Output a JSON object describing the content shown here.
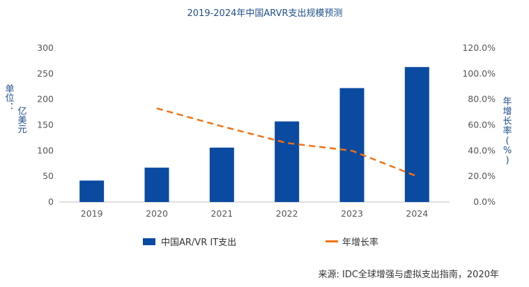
{
  "chart_data": {
    "type": "bar",
    "title": "2019-2024年中国ARVR支出规模预测",
    "categories": [
      "2019",
      "2020",
      "2021",
      "2022",
      "2023",
      "2024"
    ],
    "series": [
      {
        "name": "中国AR/VR IT支出",
        "type": "bar",
        "axis": "left",
        "values": [
          41.8,
          67,
          106,
          157,
          222,
          263
        ]
      },
      {
        "name": "年增长率",
        "type": "line",
        "style": "dashed",
        "axis": "right",
        "x": [
          "2020",
          "2021",
          "2022",
          "2023",
          "2024"
        ],
        "values": [
          73.0,
          59.0,
          46.0,
          40.0,
          20.0
        ]
      }
    ],
    "ylabel_left": [
      "单位：",
      "亿美元"
    ],
    "ylabel_right": [
      "年",
      "增",
      "长",
      "率",
      "(",
      "%",
      ")"
    ],
    "ylim_left": [
      0,
      300
    ],
    "yticks_left": [
      "0",
      "50",
      "100",
      "150",
      "200",
      "250",
      "300"
    ],
    "ylim_right": [
      0,
      120
    ],
    "yticks_right": [
      "0.0%",
      "20.0%",
      "40.0%",
      "60.0%",
      "80.0%",
      "100.0%",
      "120.0%"
    ],
    "legend": {
      "position": "bottom"
    },
    "source": "来源: IDC全球增强与虚拟支出指南，2020年",
    "colors": {
      "bar": "#0a4aa0",
      "line": "#f5700f",
      "text": "#1f4e8c",
      "axis": "#bfbfbf"
    }
  }
}
